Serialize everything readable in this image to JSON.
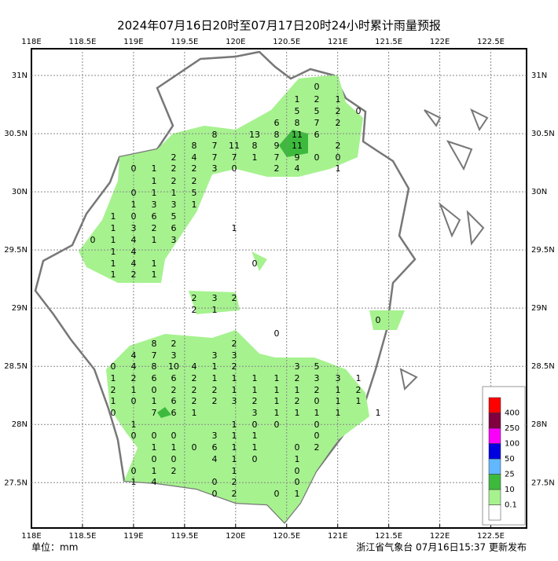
{
  "title": "2024年07月16日20时至07月17日20时24小时累计雨量预报",
  "footer": {
    "unit": "单位：mm",
    "source": "浙江省气象台 07月16日15:37 更新发布"
  },
  "axes": {
    "xlim": [
      118,
      122.85
    ],
    "ylim": [
      27.11,
      31.23
    ],
    "xticks": [
      {
        "value": 118,
        "label": "118E"
      },
      {
        "value": 118.5,
        "label": "118.5E"
      },
      {
        "value": 119,
        "label": "119E"
      },
      {
        "value": 119.5,
        "label": "119.5E"
      },
      {
        "value": 120,
        "label": "120E"
      },
      {
        "value": 120.5,
        "label": "120.5E"
      },
      {
        "value": 121,
        "label": "121E"
      },
      {
        "value": 121.5,
        "label": "121.5E"
      },
      {
        "value": 122,
        "label": "122E"
      },
      {
        "value": 122.5,
        "label": "122.5E"
      }
    ],
    "yticks": [
      {
        "value": 31,
        "label": "31N"
      },
      {
        "value": 30.5,
        "label": "30.5N"
      },
      {
        "value": 30,
        "label": "30N"
      },
      {
        "value": 29.5,
        "label": "29.5N"
      },
      {
        "value": 29,
        "label": "29N"
      },
      {
        "value": 28.5,
        "label": "28.5N"
      },
      {
        "value": 28,
        "label": "28N"
      },
      {
        "value": 27.5,
        "label": "27.5N"
      }
    ],
    "grid": true
  },
  "legend": {
    "levels": [
      0.1,
      10,
      25,
      50,
      100,
      250,
      400
    ],
    "colors": [
      "#ffffff",
      "#a6f28f",
      "#3dba3d",
      "#61b8ff",
      "#0000e1",
      "#fa00fa",
      "#800040",
      "#ff0000"
    ]
  },
  "stations": [
    [
      0
    ],
    [
      1,
      2,
      1
    ],
    [
      5,
      5,
      2,
      0
    ],
    [
      6,
      8,
      7,
      2
    ],
    [
      8,
      13,
      8,
      11,
      6
    ],
    [
      8,
      7,
      11,
      8,
      9,
      11,
      2
    ],
    [
      2,
      4,
      7,
      7,
      1,
      7,
      9,
      0,
      0
    ],
    [
      0,
      1,
      2,
      2,
      3,
      0,
      2,
      4,
      1
    ],
    [
      1,
      2,
      2
    ],
    [
      0,
      1,
      1,
      5
    ],
    [
      1,
      3,
      3,
      1
    ],
    [
      1,
      0,
      6,
      5
    ],
    [
      1,
      3,
      2,
      6,
      1
    ],
    [
      0,
      1,
      4,
      1,
      3
    ],
    [
      1,
      4
    ],
    [
      1,
      4,
      1,
      0
    ],
    [
      1,
      2,
      1
    ],
    [
      2,
      3,
      2
    ],
    [
      2,
      1
    ],
    [
      0
    ],
    [
      0
    ],
    [
      8,
      2,
      2
    ],
    [
      4,
      7,
      3,
      3,
      3
    ],
    [
      0,
      4,
      8,
      10,
      4,
      1,
      2,
      3,
      5
    ],
    [
      1,
      2,
      6,
      6,
      2,
      1,
      1,
      1,
      1,
      2,
      3,
      3,
      1
    ],
    [
      2,
      1,
      0,
      2,
      2,
      2,
      1,
      1,
      1,
      1,
      2,
      1,
      2
    ],
    [
      1,
      0,
      1,
      6,
      2,
      2,
      3,
      2,
      1,
      2,
      0,
      1,
      1
    ],
    [
      0,
      7,
      6,
      1,
      3,
      1,
      1,
      1,
      1,
      1
    ],
    [
      1,
      1,
      0,
      0,
      0
    ],
    [
      0,
      0,
      0,
      3,
      1,
      1,
      0
    ],
    [
      1,
      1,
      0,
      6,
      1,
      1,
      0,
      2
    ],
    [
      0,
      0,
      4,
      1,
      0,
      1
    ],
    [
      0,
      1,
      2,
      1,
      0
    ],
    [
      1,
      4,
      0,
      2,
      0
    ],
    [
      0,
      2,
      0,
      1
    ]
  ]
}
